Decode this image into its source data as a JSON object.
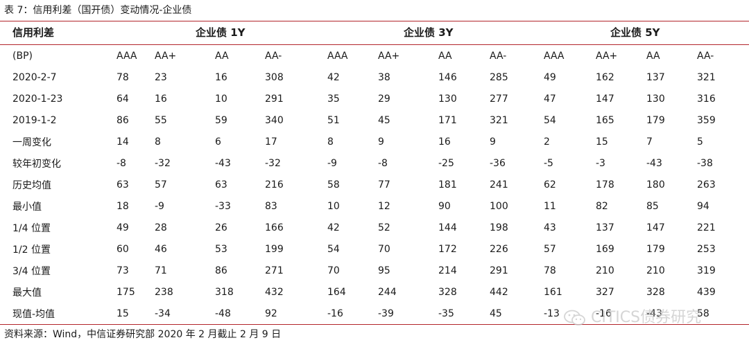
{
  "caption": "表 7：信用利差（国开债）变动情况-企业债",
  "header": {
    "corner": "信用利差",
    "groups": [
      "企业债 1Y",
      "企业债 3Y",
      "企业债 5Y"
    ]
  },
  "subheader": {
    "label": "(BP)",
    "ratings": [
      "AAA",
      "AA+",
      "AA",
      "AA-",
      "AAA",
      "AA+",
      "AA",
      "AA-",
      "AAA",
      "AA+",
      "AA",
      "AA-"
    ]
  },
  "rows": [
    {
      "label": "2020-2-7",
      "values": [
        "78",
        "23",
        "16",
        "308",
        "42",
        "38",
        "146",
        "285",
        "49",
        "162",
        "137",
        "321"
      ]
    },
    {
      "label": "2020-1-23",
      "values": [
        "64",
        "16",
        "10",
        "291",
        "35",
        "29",
        "130",
        "277",
        "47",
        "147",
        "130",
        "316"
      ]
    },
    {
      "label": "2019-1-2",
      "values": [
        "86",
        "55",
        "59",
        "340",
        "51",
        "45",
        "171",
        "321",
        "54",
        "165",
        "179",
        "359"
      ]
    },
    {
      "label": "一周变化",
      "values": [
        "14",
        "8",
        "6",
        "17",
        "8",
        "9",
        "16",
        "9",
        "2",
        "15",
        "7",
        "5"
      ]
    },
    {
      "label": "较年初变化",
      "values": [
        "-8",
        "-32",
        "-43",
        "-32",
        "-9",
        "-8",
        "-25",
        "-36",
        "-5",
        "-3",
        "-43",
        "-38"
      ]
    },
    {
      "label": "历史均值",
      "values": [
        "63",
        "57",
        "63",
        "216",
        "58",
        "77",
        "181",
        "241",
        "62",
        "178",
        "180",
        "263"
      ]
    },
    {
      "label": "最小值",
      "values": [
        "18",
        "-9",
        "-33",
        "83",
        "10",
        "12",
        "90",
        "100",
        "11",
        "82",
        "85",
        "94"
      ]
    },
    {
      "label": "1/4 位置",
      "values": [
        "49",
        "28",
        "26",
        "166",
        "42",
        "52",
        "144",
        "198",
        "43",
        "137",
        "147",
        "221"
      ]
    },
    {
      "label": "1/2 位置",
      "values": [
        "60",
        "46",
        "53",
        "199",
        "54",
        "70",
        "172",
        "226",
        "57",
        "169",
        "179",
        "253"
      ]
    },
    {
      "label": "3/4 位置",
      "values": [
        "73",
        "71",
        "86",
        "271",
        "70",
        "95",
        "214",
        "291",
        "78",
        "210",
        "210",
        "319"
      ]
    },
    {
      "label": "最大值",
      "values": [
        "175",
        "238",
        "318",
        "432",
        "164",
        "244",
        "328",
        "442",
        "161",
        "327",
        "328",
        "439"
      ]
    },
    {
      "label": "现值-均值",
      "values": [
        "15",
        "-34",
        "-48",
        "92",
        "-16",
        "-39",
        "-35",
        "45",
        "-13",
        "-16",
        "-43",
        "58"
      ]
    }
  ],
  "source": "资料来源：Wind，中信证券研究部  2020 年 2 月截止 2 月 9 日",
  "watermark": "CITICS债券研究",
  "colors": {
    "rule": "#b2232a",
    "text": "#1a1a1a",
    "watermark": "#c8c8c8"
  }
}
